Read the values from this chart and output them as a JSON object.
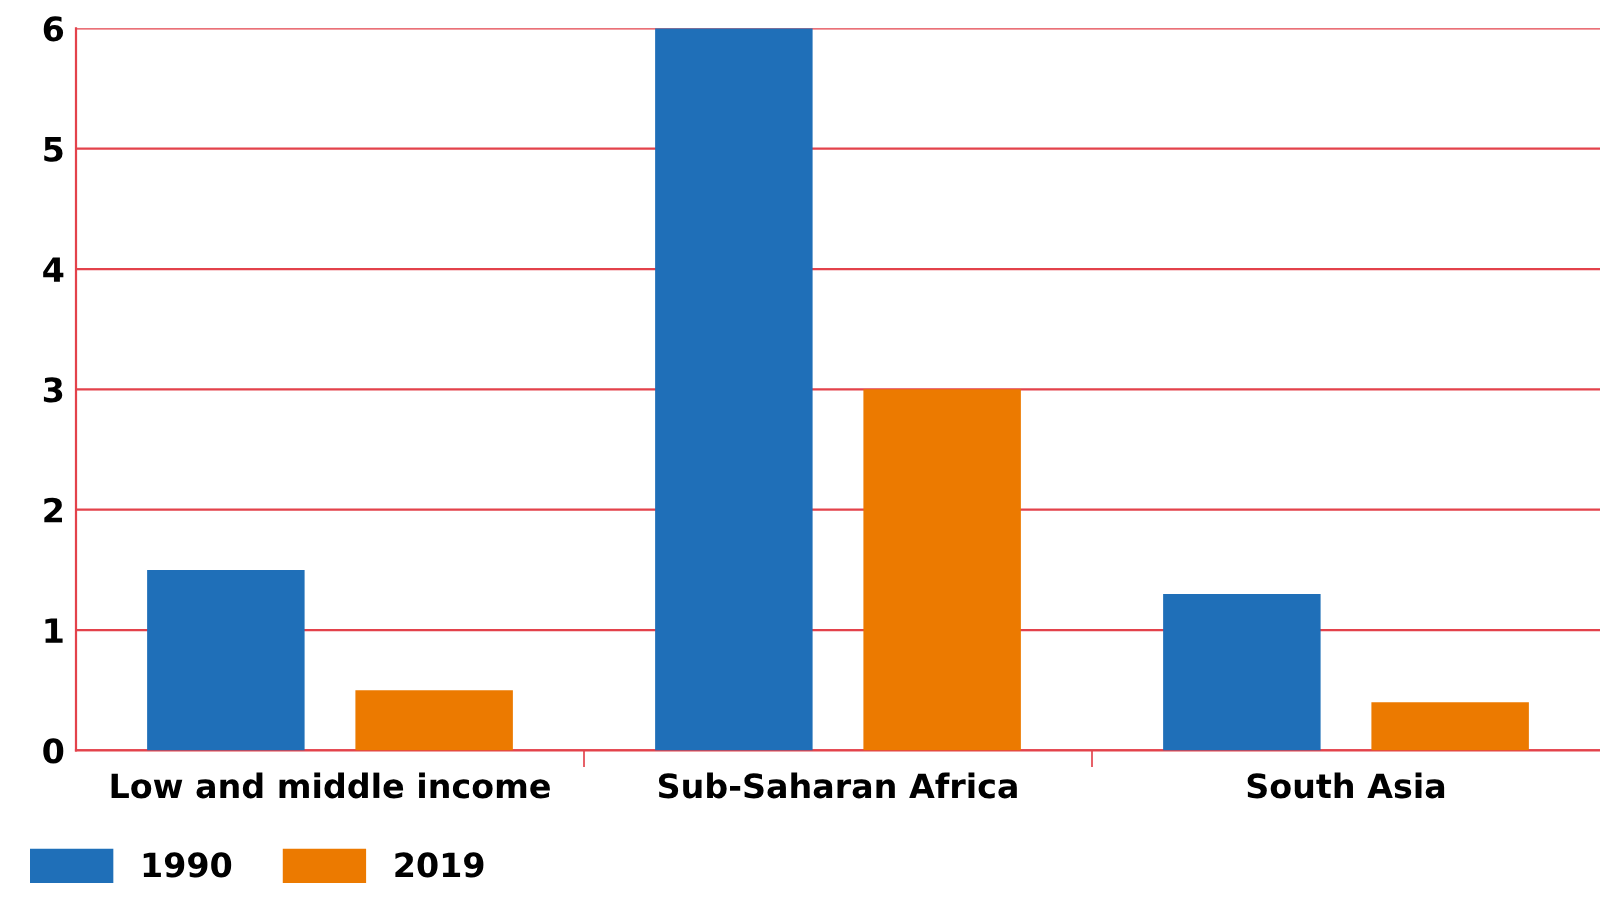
{
  "chart_data": {
    "type": "bar",
    "categories": [
      "Low and middle income",
      "Sub-Saharan Africa",
      "South Asia"
    ],
    "series": [
      {
        "name": "1990",
        "color": "#1f6fb8",
        "values": [
          1.5,
          6,
          1.3
        ]
      },
      {
        "name": "2019",
        "color": "#ec7a00",
        "values": [
          0.5,
          3,
          0.4
        ]
      }
    ],
    "ylim": [
      0,
      6
    ],
    "yticks": [
      0,
      1,
      2,
      3,
      4,
      5,
      6
    ],
    "grid": "y",
    "legend": "bottom left"
  }
}
